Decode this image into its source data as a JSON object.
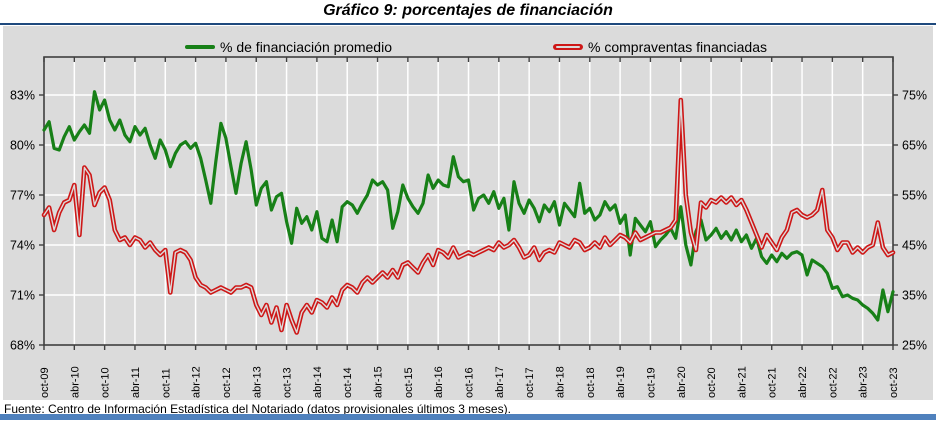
{
  "title": "Gráfico 9: porcentajes de financiación",
  "footer": {
    "source": "Fuente: Centro de Información Estadística del Notariado (datos provisionales últimos 3 meses)."
  },
  "colors": {
    "panel_bg": "#DBDBDB",
    "gridline": "#FFFFFF",
    "plot_border": "#3F3F3F",
    "green_series": "#178017",
    "red_series": "#CE1717",
    "red_core": "#DBDBDB",
    "top_rule": "#1F497D",
    "bottom_bar": "#4F81BD"
  },
  "chart_data": {
    "type": "line",
    "title": "Gráfico 9: porcentajes de financiación",
    "legend_position": "top",
    "grid": true,
    "x_tick_step": 6,
    "left_axis": {
      "ticks": [
        "83%",
        "80%",
        "77%",
        "74%",
        "71%",
        "68%"
      ],
      "tick_values": [
        83,
        80,
        77,
        74,
        71,
        68
      ],
      "min": 68,
      "max": 85.28
    },
    "right_axis": {
      "ticks": [
        "75%",
        "65%",
        "55%",
        "45%",
        "35%",
        "25%"
      ],
      "tick_values": [
        75,
        65,
        55,
        45,
        35,
        25
      ],
      "min": 25,
      "max": 82.6
    },
    "categories": [
      "oct-09",
      "nov-09",
      "dic-09",
      "ene-10",
      "feb-10",
      "mar-10",
      "abr-10",
      "may-10",
      "jun-10",
      "jul-10",
      "ago-10",
      "sep-10",
      "oct-10",
      "nov-10",
      "dic-10",
      "ene-11",
      "feb-11",
      "mar-11",
      "abr-11",
      "may-11",
      "jun-11",
      "jul-11",
      "ago-11",
      "sep-11",
      "oct-11",
      "nov-11",
      "dic-11",
      "ene-12",
      "feb-12",
      "mar-12",
      "abr-12",
      "may-12",
      "jun-12",
      "jul-12",
      "ago-12",
      "sep-12",
      "oct-12",
      "nov-12",
      "dic-12",
      "ene-13",
      "feb-13",
      "mar-13",
      "abr-13",
      "may-13",
      "jun-13",
      "jul-13",
      "ago-13",
      "sep-13",
      "oct-13",
      "nov-13",
      "dic-13",
      "ene-14",
      "feb-14",
      "mar-14",
      "abr-14",
      "may-14",
      "jun-14",
      "jul-14",
      "ago-14",
      "sep-14",
      "oct-14",
      "nov-14",
      "dic-14",
      "ene-15",
      "feb-15",
      "mar-15",
      "abr-15",
      "may-15",
      "jun-15",
      "jul-15",
      "ago-15",
      "sep-15",
      "oct-15",
      "nov-15",
      "dic-15",
      "ene-16",
      "feb-16",
      "mar-16",
      "abr-16",
      "may-16",
      "jun-16",
      "jul-16",
      "ago-16",
      "sep-16",
      "oct-16",
      "nov-16",
      "dic-16",
      "ene-17",
      "feb-17",
      "mar-17",
      "abr-17",
      "may-17",
      "jun-17",
      "jul-17",
      "ago-17",
      "sep-17",
      "oct-17",
      "nov-17",
      "dic-17",
      "ene-18",
      "feb-18",
      "mar-18",
      "abr-18",
      "may-18",
      "jun-18",
      "jul-18",
      "ago-18",
      "sep-18",
      "oct-18",
      "nov-18",
      "dic-18",
      "ene-19",
      "feb-19",
      "mar-19",
      "abr-19",
      "may-19",
      "jun-19",
      "jul-19",
      "ago-19",
      "sep-19",
      "oct-19",
      "nov-19",
      "dic-19",
      "ene-20",
      "feb-20",
      "mar-20",
      "abr-20",
      "may-20",
      "jun-20",
      "jul-20",
      "ago-20",
      "sep-20",
      "oct-20",
      "nov-20",
      "dic-20",
      "ene-21",
      "feb-21",
      "mar-21",
      "abr-21",
      "may-21",
      "jun-21",
      "jul-21",
      "ago-21",
      "sep-21",
      "oct-21",
      "nov-21",
      "dic-21",
      "ene-22",
      "feb-22",
      "mar-22",
      "abr-22",
      "may-22",
      "jun-22",
      "jul-22",
      "ago-22",
      "sep-22",
      "oct-22",
      "nov-22",
      "dic-22",
      "ene-23",
      "feb-23",
      "mar-23",
      "abr-23",
      "may-23",
      "jun-23",
      "jul-23",
      "ago-23",
      "sep-23",
      "oct-23"
    ],
    "series": [
      {
        "name": "% de financiación promedio",
        "axis": "left",
        "color": "#178017",
        "style": "solid",
        "values": [
          80.9,
          81.4,
          79.8,
          79.7,
          80.5,
          81.1,
          80.3,
          80.8,
          81.2,
          80.7,
          83.2,
          82.1,
          82.7,
          81.5,
          80.9,
          81.5,
          80.6,
          80.2,
          81.1,
          80.6,
          81.0,
          80.0,
          79.2,
          80.3,
          79.7,
          78.7,
          79.5,
          80.0,
          80.2,
          79.8,
          80.1,
          79.2,
          77.9,
          76.5,
          79.0,
          81.3,
          80.4,
          78.7,
          77.1,
          78.9,
          80.2,
          78.5,
          76.4,
          77.4,
          77.8,
          76.1,
          76.9,
          77.1,
          75.4,
          74.1,
          76.2,
          75.3,
          75.7,
          74.9,
          76.0,
          74.4,
          74.2,
          75.5,
          74.2,
          76.3,
          76.6,
          76.4,
          75.9,
          76.5,
          77.0,
          77.9,
          77.6,
          77.8,
          77.3,
          75.0,
          76.0,
          77.6,
          76.8,
          76.3,
          75.9,
          76.5,
          78.2,
          77.4,
          77.9,
          77.6,
          77.5,
          79.3,
          78.1,
          77.8,
          77.9,
          76.1,
          76.8,
          77.0,
          76.5,
          77.2,
          76.2,
          76.8,
          74.9,
          77.8,
          76.5,
          75.9,
          76.7,
          76.2,
          75.4,
          76.4,
          76.0,
          76.6,
          75.2,
          76.5,
          76.1,
          75.7,
          77.7,
          75.9,
          76.2,
          75.5,
          75.8,
          76.6,
          76.1,
          76.4,
          75.3,
          75.8,
          73.4,
          75.6,
          75.2,
          74.8,
          75.4,
          73.9,
          74.3,
          74.6,
          75.0,
          74.4,
          76.3,
          74.0,
          72.8,
          74.8,
          75.5,
          74.3,
          74.6,
          75.0,
          74.4,
          74.8,
          74.3,
          74.9,
          74.2,
          74.6,
          73.8,
          74.4,
          73.3,
          72.9,
          73.4,
          73.0,
          73.5,
          73.2,
          73.5,
          73.6,
          73.4,
          72.2,
          73.1,
          72.9,
          72.7,
          72.3,
          71.4,
          71.5,
          70.9,
          71.0,
          70.8,
          70.7,
          70.4,
          70.2,
          69.9,
          69.5,
          71.3,
          70.0,
          71.2
        ]
      },
      {
        "name": "% compraventas financiadas",
        "axis": "right",
        "color": "#CE1717",
        "style": "double-line",
        "values": [
          51.0,
          52.5,
          48.0,
          51.5,
          53.5,
          54.0,
          57.0,
          47.0,
          60.5,
          59.0,
          53.0,
          55.5,
          56.5,
          54.0,
          48.0,
          46.0,
          46.5,
          45.0,
          46.5,
          46.0,
          44.5,
          45.5,
          44.0,
          43.0,
          44.0,
          35.5,
          43.5,
          44.0,
          43.5,
          42.0,
          38.5,
          37.0,
          36.5,
          35.5,
          36.0,
          36.5,
          36.0,
          35.5,
          36.5,
          36.5,
          37.0,
          36.5,
          33.0,
          31.0,
          33.0,
          29.5,
          32.5,
          28.0,
          33.0,
          30.0,
          27.5,
          31.5,
          33.0,
          31.5,
          34.0,
          33.5,
          32.5,
          34.5,
          33.0,
          36.0,
          37.0,
          36.5,
          35.5,
          37.5,
          38.5,
          37.5,
          38.5,
          39.5,
          38.5,
          40.0,
          38.5,
          41.0,
          41.5,
          40.5,
          39.5,
          41.5,
          43.0,
          41.0,
          44.0,
          43.5,
          42.5,
          44.5,
          42.5,
          43.0,
          43.5,
          43.0,
          43.5,
          44.0,
          44.5,
          44.0,
          45.5,
          44.5,
          45.0,
          46.0,
          44.5,
          42.5,
          43.0,
          44.5,
          42.0,
          43.5,
          44.0,
          43.5,
          45.5,
          45.0,
          44.5,
          46.0,
          45.5,
          44.0,
          44.5,
          45.5,
          44.5,
          46.5,
          45.0,
          46.0,
          47.0,
          46.5,
          45.5,
          47.5,
          46.0,
          46.5,
          47.0,
          47.5,
          47.5,
          48.0,
          48.5,
          50.0,
          74.0,
          55.0,
          47.5,
          44.0,
          53.5,
          52.5,
          54.0,
          53.5,
          54.5,
          53.5,
          54.5,
          53.0,
          54.0,
          52.0,
          49.5,
          47.0,
          44.5,
          47.0,
          45.5,
          44.0,
          46.5,
          48.0,
          51.5,
          52.0,
          51.0,
          50.5,
          51.0,
          52.0,
          56.0,
          48.0,
          46.5,
          44.0,
          45.5,
          45.5,
          43.5,
          44.5,
          43.5,
          44.5,
          45.0,
          49.5,
          44.5,
          43.0,
          43.5
        ]
      }
    ]
  }
}
